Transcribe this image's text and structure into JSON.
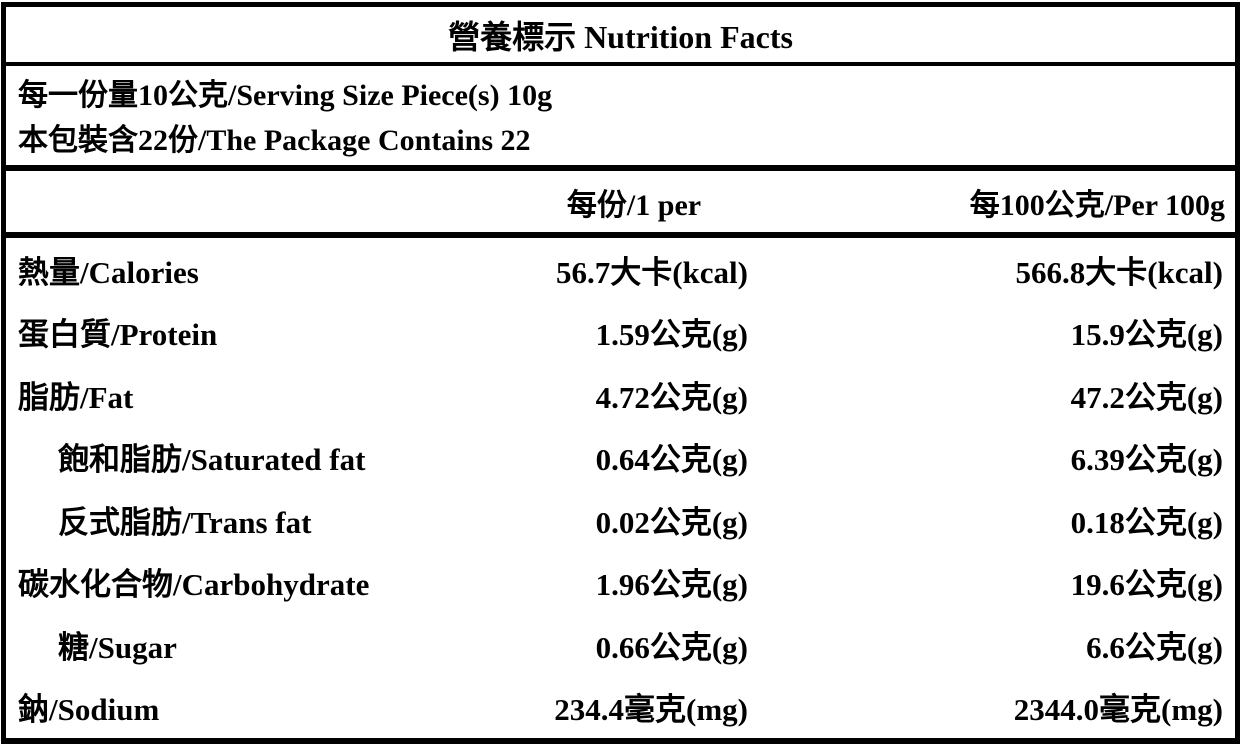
{
  "label": {
    "title": "營養標示 Nutrition Facts",
    "serving": {
      "serving_size_line": "每一份量10公克/Serving Size Piece(s) 10g",
      "package_contains_line": "本包裝含22份/The Package Contains 22"
    },
    "columns": {
      "per_serving": "每份/1 per",
      "per_100g": "每100公克/Per 100g"
    },
    "rows": [
      {
        "name": "熱量/Calories",
        "per_serving": "56.7大卡(kcal)",
        "per_100g": "566.8大卡(kcal)",
        "indent": false
      },
      {
        "name": "蛋白質/Protein",
        "per_serving": "1.59公克(g)",
        "per_100g": "15.9公克(g)",
        "indent": false
      },
      {
        "name": "脂肪/Fat",
        "per_serving": "4.72公克(g)",
        "per_100g": "47.2公克(g)",
        "indent": false
      },
      {
        "name": "飽和脂肪/Saturated fat",
        "per_serving": "0.64公克(g)",
        "per_100g": "6.39公克(g)",
        "indent": true
      },
      {
        "name": "反式脂肪/Trans fat",
        "per_serving": "0.02公克(g)",
        "per_100g": "0.18公克(g)",
        "indent": true
      },
      {
        "name": "碳水化合物/Carbohydrate",
        "per_serving": "1.96公克(g)",
        "per_100g": "19.6公克(g)",
        "indent": false
      },
      {
        "name": "糖/Sugar",
        "per_serving": "0.66公克(g)",
        "per_100g": "6.6公克(g)",
        "indent": true
      },
      {
        "name": "鈉/Sodium",
        "per_serving": "234.4毫克(mg)",
        "per_100g": "2344.0毫克(mg)",
        "indent": false
      }
    ],
    "colors": {
      "text": "#000000",
      "background": "#ffffff",
      "border": "#000000"
    }
  }
}
